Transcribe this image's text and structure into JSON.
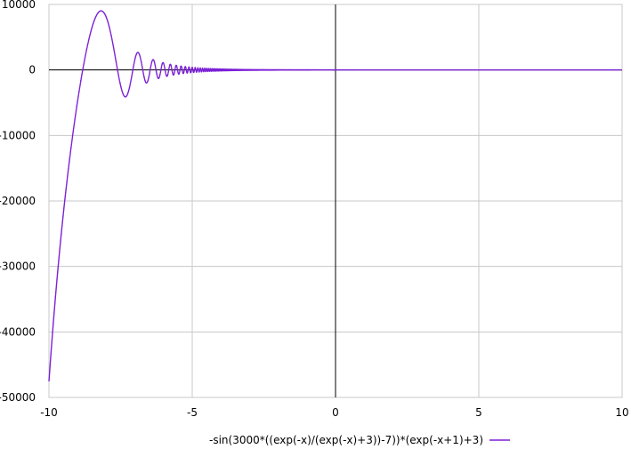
{
  "chart_data": {
    "type": "line",
    "title": "",
    "xlabel": "",
    "ylabel": "",
    "xlim": [
      -10,
      10
    ],
    "ylim": [
      -50000,
      10000
    ],
    "x_ticks": [
      -10,
      -5,
      0,
      5,
      10
    ],
    "x_tick_labels": [
      "-10",
      "-5",
      "0",
      "5",
      "10"
    ],
    "y_ticks": [
      10000,
      0,
      -10000,
      -20000,
      -30000,
      -40000,
      -50000
    ],
    "y_tick_labels": [
      "10000",
      "0",
      "-10000",
      "-20000",
      "-30000",
      "-40000",
      "-50000"
    ],
    "grid": true,
    "legend_position": "bottom-center",
    "series": [
      {
        "name": "-sin(3000*((exp(-x)/(exp(-x)+3))-7))*(exp(-x+1)+3)",
        "color": "#7b1fd6",
        "function": "-sin(3000*((exp(-x)/(exp(-x)+3))-7))*(exp(-x+1)+3)",
        "sample_points": [
          {
            "x": -10,
            "y": -48000
          },
          {
            "x": -9.5,
            "y": -28000
          },
          {
            "x": -9.0,
            "y": -9000
          },
          {
            "x": -8.7,
            "y": 0
          },
          {
            "x": -8.2,
            "y": 9000
          },
          {
            "x": -7.7,
            "y": 2000
          },
          {
            "x": -7.3,
            "y": -4000
          },
          {
            "x": -6.9,
            "y": 2500
          },
          {
            "x": -6.5,
            "y": -1500
          },
          {
            "x": -6.2,
            "y": 1500
          },
          {
            "x": -5.5,
            "y": 500
          },
          {
            "x": -4.0,
            "y": 100
          },
          {
            "x": 0,
            "y": 0
          },
          {
            "x": 10,
            "y": 0
          }
        ]
      }
    ]
  }
}
